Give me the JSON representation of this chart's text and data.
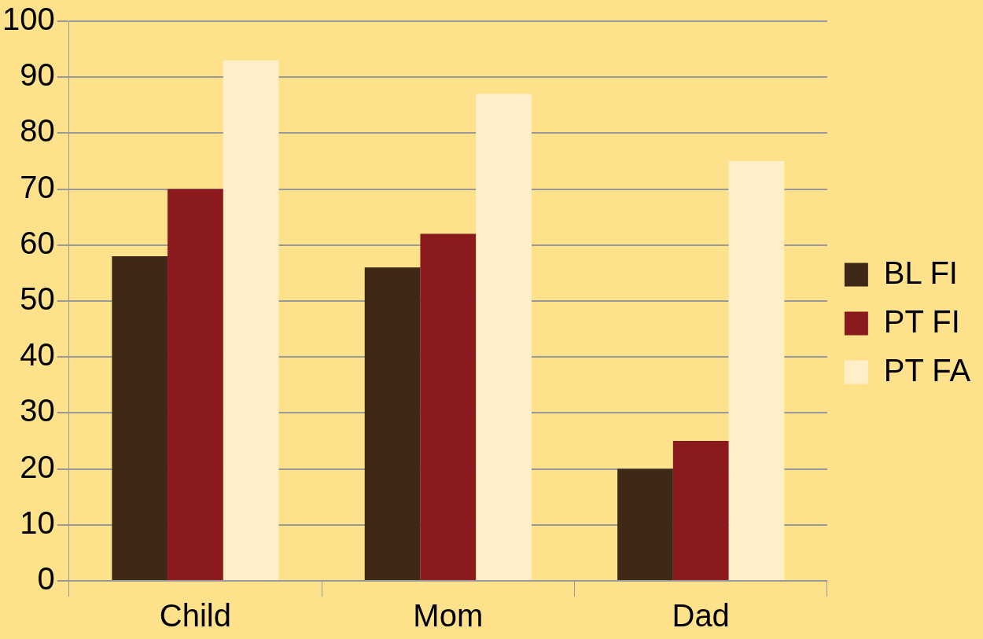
{
  "chart_data": {
    "type": "bar",
    "categories": [
      "Child",
      "Mom",
      "Dad"
    ],
    "series": [
      {
        "name": "BL FI",
        "color": "#3d2915",
        "values": [
          58,
          56,
          20
        ]
      },
      {
        "name": "PT FI",
        "color": "#8b1a1f",
        "values": [
          70,
          62,
          25
        ]
      },
      {
        "name": "PT FA",
        "color": "#feefc8",
        "values": [
          93,
          87,
          75
        ]
      }
    ],
    "ylim": [
      0,
      100
    ],
    "yticks": [
      0,
      10,
      20,
      30,
      40,
      50,
      60,
      70,
      80,
      90,
      100
    ],
    "grid": "y",
    "legend": "right"
  }
}
